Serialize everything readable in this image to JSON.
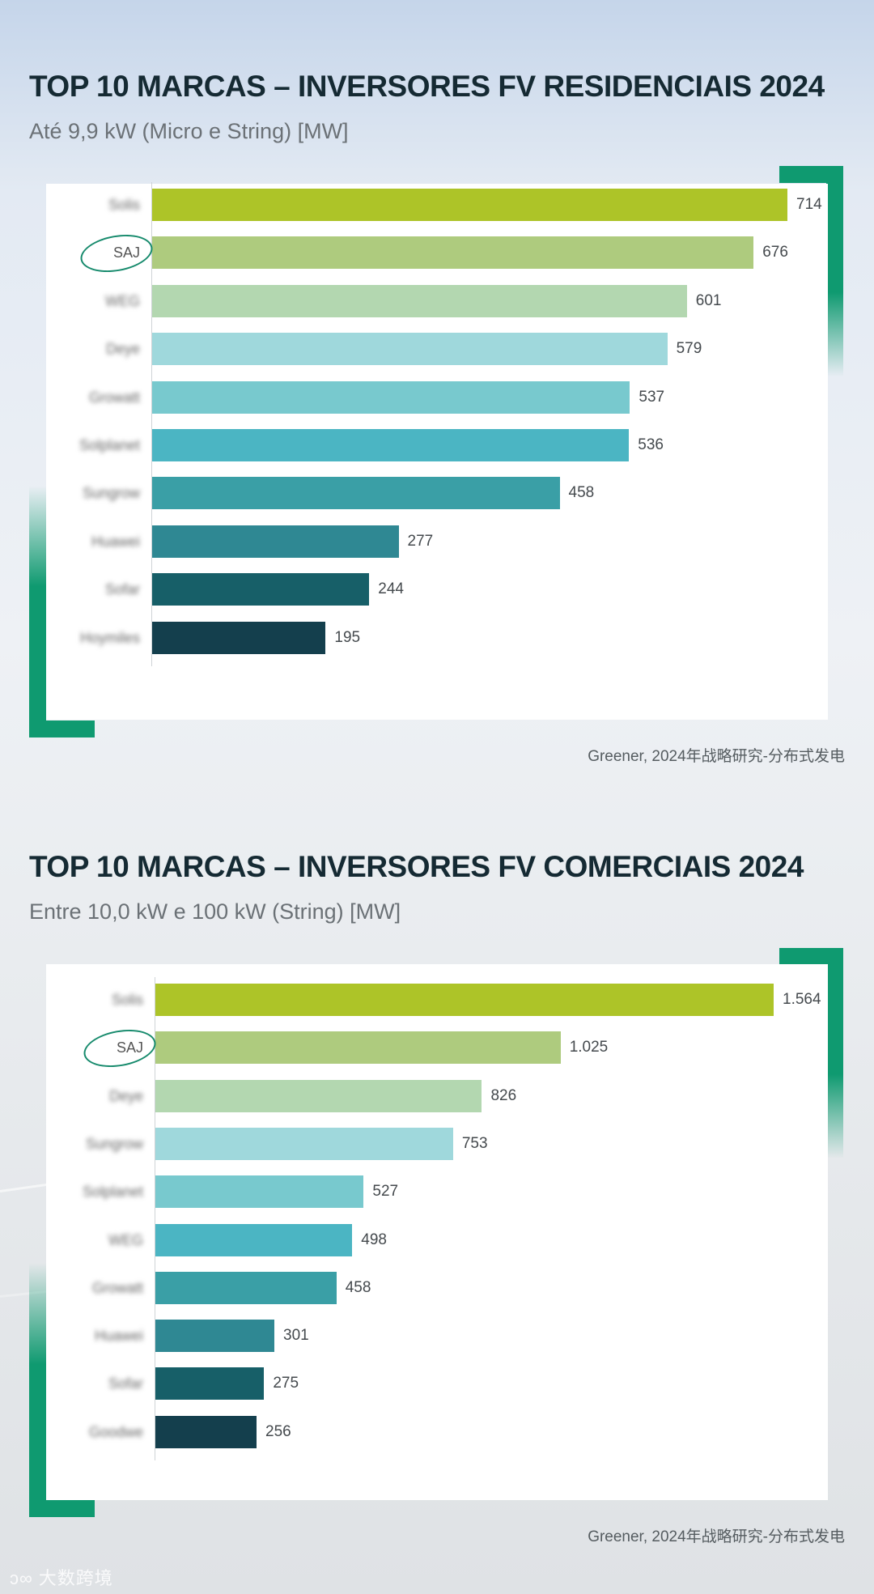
{
  "sections": [
    {
      "title": "TOP 10 MARCAS – INVERSORES FV RESIDENCIAIS 2024",
      "subtitle": "Até 9,9 kW (Micro e String) [MW]",
      "source": "Greener, 2024年战略研究-分布式发电"
    },
    {
      "title": "TOP 10 MARCAS – INVERSORES FV COMERCIAIS 2024",
      "subtitle": "Entre 10,0 kW e 100 kW (String) [MW]",
      "source": "Greener, 2024年战略研究-分布式发电"
    }
  ],
  "watermark": "大数跨境",
  "colors": {
    "accent": "#0f9a70",
    "bars": [
      "#adc428",
      "#aecb7e",
      "#b3d7b0",
      "#9fd8dc",
      "#78c9ce",
      "#4bb5c3",
      "#3a9fa6",
      "#2f8893",
      "#175f68",
      "#143f4d"
    ]
  },
  "chart_data": [
    {
      "type": "bar",
      "orientation": "horizontal",
      "title": "TOP 10 MARCAS – INVERSORES FV RESIDENCIAIS 2024",
      "subtitle": "Até 9,9 kW (Micro e String) [MW]",
      "categories": [
        "Solis",
        "SAJ",
        "WEG",
        "Deye",
        "Growatt",
        "Solplanet",
        "Sungrow",
        "Huawei",
        "Sofar",
        "Hoymiles"
      ],
      "values": [
        714,
        676,
        601,
        579,
        537,
        536,
        458,
        277,
        244,
        195
      ],
      "value_labels": [
        "714",
        "676",
        "601",
        "579",
        "537",
        "536",
        "458",
        "277",
        "244",
        "195"
      ],
      "highlight": "SAJ",
      "xlim": [
        0,
        714
      ],
      "unit": "MW"
    },
    {
      "type": "bar",
      "orientation": "horizontal",
      "title": "TOP 10 MARCAS – INVERSORES FV COMERCIAIS 2024",
      "subtitle": "Entre 10,0 kW e 100 kW (String) [MW]",
      "categories": [
        "Solis",
        "SAJ",
        "Deye",
        "Sungrow",
        "Solplanet",
        "WEG",
        "Growatt",
        "Huawei",
        "Sofar",
        "Goodwe"
      ],
      "values": [
        1564,
        1025,
        826,
        753,
        527,
        498,
        458,
        301,
        275,
        256
      ],
      "value_labels": [
        "1.564",
        "1.025",
        "826",
        "753",
        "527",
        "498",
        "458",
        "301",
        "275",
        "256"
      ],
      "highlight": "SAJ",
      "xlim": [
        0,
        1564
      ],
      "unit": "MW"
    }
  ]
}
